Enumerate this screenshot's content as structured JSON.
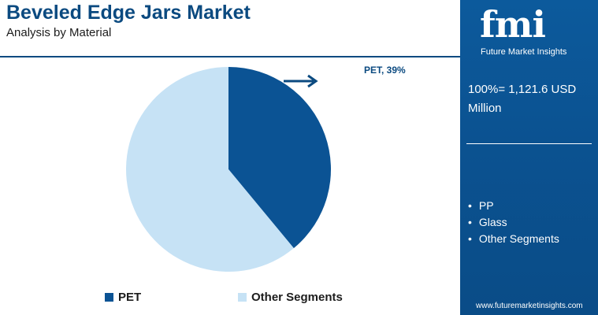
{
  "header": {
    "title": "Beveled Edge Jars Market",
    "subtitle": "Analysis by Material"
  },
  "sidebar": {
    "logo_text": "fmi",
    "logo_tagline": "Future Market Insights",
    "total_line1": "100%= 1,121.6 USD",
    "total_line2": "Million",
    "other_segments": [
      "PP",
      "Glass",
      "Other Segments"
    ],
    "website": "www.futuremarketinsights.com"
  },
  "colors": {
    "brand": "#0b4a80",
    "pet": "#0b5394",
    "other": "#c6e2f5",
    "panel": "#0b5291"
  },
  "chart_data": {
    "type": "pie",
    "title": "Beveled Edge Jars Market",
    "subtitle": "Analysis by Material",
    "slices": [
      {
        "label": "PET",
        "value": 39,
        "color": "#0b5394"
      },
      {
        "label": "Other Segments",
        "value": 61,
        "color": "#c6e2f5"
      }
    ],
    "annotation": "PET, 39%",
    "legend": [
      "PET",
      "Other Segments"
    ],
    "legend_position": "bottom"
  }
}
